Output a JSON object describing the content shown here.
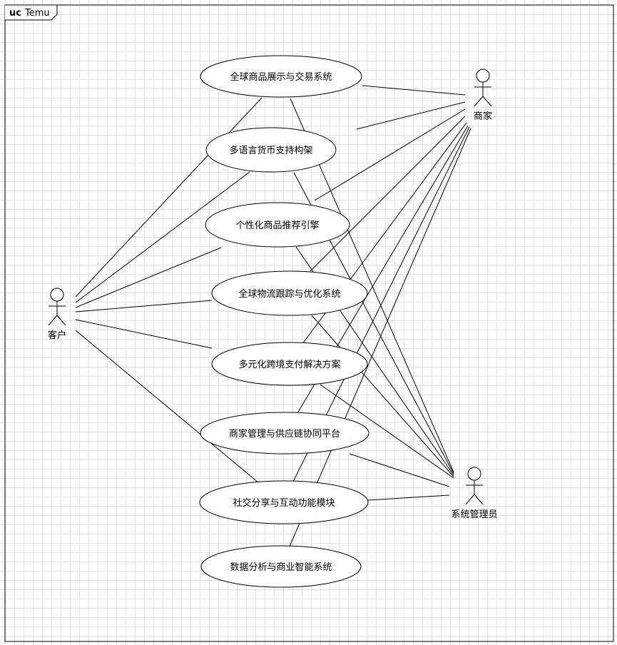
{
  "frame": {
    "keyword": "uc",
    "name": "Temu"
  },
  "use_cases": [
    "全球商品展示与交易系统",
    "多语言货币支持构架",
    "个性化商品推荐引擎",
    "全球物流跟踪与优化系统",
    "多元化跨境支付解决方案",
    "商家管理与供应链协同平台",
    "社交分享与互动功能模块",
    "数据分析与商业智能系统"
  ],
  "actors": {
    "customer": "客户",
    "merchant": "商家",
    "admin": "系统管理员"
  },
  "colors": {
    "line": "#000000",
    "grid": "#e4e4e4",
    "fill": "#ffffff"
  }
}
